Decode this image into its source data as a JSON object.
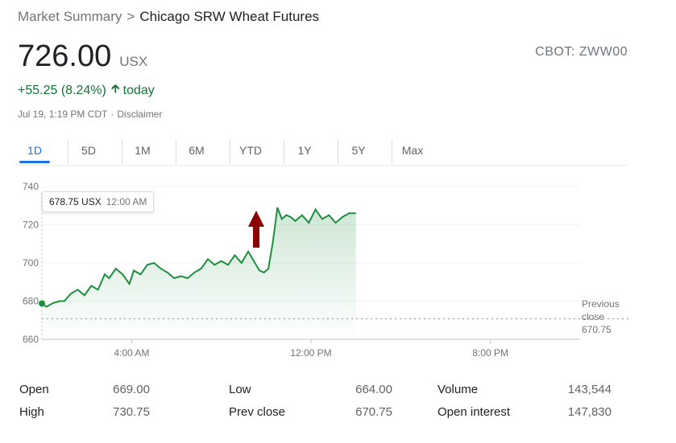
{
  "breadcrumb": {
    "root": "Market Summary",
    "separator": ">",
    "current": "Chicago SRW Wheat Futures"
  },
  "quote": {
    "price": "726.00",
    "currency": "USX",
    "exchange": "CBOT: ZWW00",
    "change": "+55.25 (8.24%)",
    "change_period": "today",
    "up_icon": "up-arrow-icon",
    "positive_color": "#137333"
  },
  "timestamp": {
    "time": "Jul 19, 1:19 PM CDT",
    "separator": "·",
    "disclaimer": "Disclaimer"
  },
  "tabs": [
    {
      "label": "1D",
      "active": true
    },
    {
      "label": "5D"
    },
    {
      "label": "1M"
    },
    {
      "label": "6M"
    },
    {
      "label": "YTD"
    },
    {
      "label": "1Y"
    },
    {
      "label": "5Y"
    },
    {
      "label": "Max"
    }
  ],
  "tooltip": {
    "price": "678.75 USX",
    "time": "12:00 AM"
  },
  "prev_close": {
    "label_line1": "Previous",
    "label_line2": "close",
    "value": "670.75"
  },
  "chart_data": {
    "type": "line",
    "ylim": [
      660,
      742
    ],
    "yticks": [
      660,
      680,
      700,
      720,
      740
    ],
    "ytick_labels": [
      "660",
      "680",
      "700",
      "720",
      "740"
    ],
    "xlim": [
      0,
      24
    ],
    "xticks": [
      4,
      12,
      20
    ],
    "xtick_labels": [
      "4:00 AM",
      "12:00 PM",
      "8:00 PM"
    ],
    "prev_close": 670.75,
    "line_color": "#1e8e3e",
    "annotation": "red up arrow near 10:30 AM",
    "series": [
      {
        "x": [
          0,
          0.2,
          0.5,
          0.8,
          1.0,
          1.3,
          1.6,
          1.9,
          2.2,
          2.5,
          2.8,
          3.0,
          3.3,
          3.6,
          3.9,
          4.1,
          4.4,
          4.7,
          5.0,
          5.3,
          5.6,
          5.9,
          6.2,
          6.5,
          6.8,
          7.1,
          7.4,
          7.7,
          8.0,
          8.3,
          8.6,
          8.9,
          9.2,
          9.5,
          9.7,
          9.9,
          10.1,
          10.3,
          10.5,
          10.7,
          10.9,
          11.1,
          11.3,
          11.6,
          11.9,
          12.2,
          12.5,
          12.8,
          13.1,
          13.4,
          13.7,
          14.0
        ],
        "y": [
          678.75,
          677,
          679,
          680,
          680,
          684,
          686,
          683,
          688,
          686,
          694,
          692,
          697,
          694,
          689,
          696,
          694,
          699,
          700,
          697,
          695,
          692,
          693,
          692,
          695,
          697,
          702,
          699,
          701,
          699,
          704,
          700,
          706,
          700,
          696,
          695,
          697,
          711,
          729,
          723,
          725,
          724,
          722,
          725,
          721,
          728,
          723,
          725,
          721,
          724,
          726,
          726
        ]
      }
    ]
  },
  "stats": [
    {
      "label": "Open",
      "value": "669.00"
    },
    {
      "label": "High",
      "value": "730.75"
    },
    {
      "label": "Low",
      "value": "664.00"
    },
    {
      "label": "Prev close",
      "value": "670.75"
    },
    {
      "label": "Volume",
      "value": "143,544"
    },
    {
      "label": "Open interest",
      "value": "147,830"
    }
  ]
}
